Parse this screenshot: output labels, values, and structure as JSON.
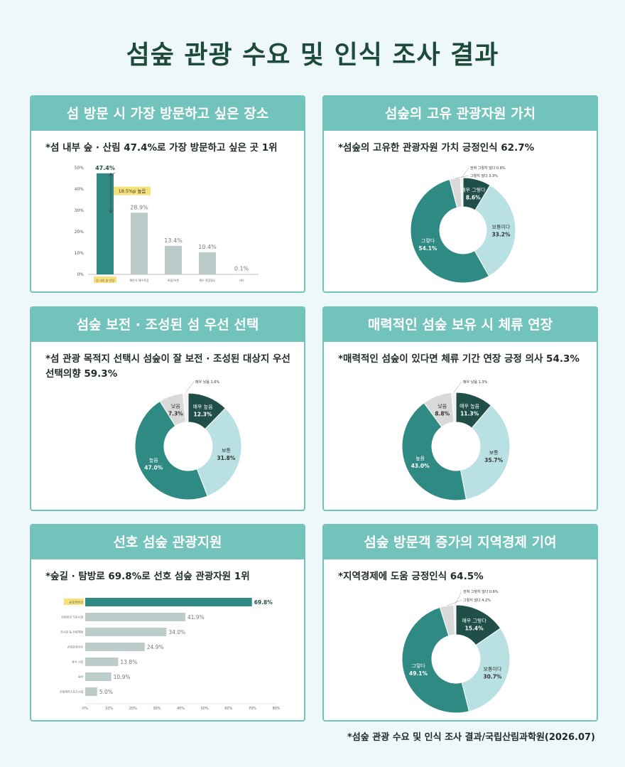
{
  "title": "섬숲 관광 수요 및 인식 조사 결과",
  "source": "*섬숲 관광 수요 및 인식 조사 결과/국립산림과학원(2026.07)",
  "colors": {
    "dark": "#1f4f48",
    "teal": "#2f8a84",
    "light": "#b9e0e3",
    "grey": "#d9d9d9",
    "pale": "#f1f1f1",
    "barGrey": "#bccccb",
    "highlight": "#f6e27a"
  },
  "chart_data": [
    {
      "id": "c1",
      "type": "bar",
      "title": "섬 방문 시 가장 방문하고 싶은 장소",
      "subtitle": "*섬 내부 숲 · 산림 47.4%로 가장 방문하고 싶은 곳 1위",
      "categories": [
        "섬 내부 숲·산림",
        "해안가 해수욕장",
        "마을/어촌",
        "해수 관광명소",
        "기타"
      ],
      "values": [
        47.4,
        28.9,
        13.4,
        10.4,
        0.1
      ],
      "value_labels": [
        "47.4%",
        "28.9%",
        "13.4%",
        "10.4%",
        "0.1%"
      ],
      "yticks": [
        "0%",
        "10%",
        "20%",
        "30%",
        "40%",
        "50%"
      ],
      "ylim": [
        0,
        50
      ],
      "annotation": "18.5%p 높음"
    },
    {
      "id": "c2",
      "type": "pie",
      "title": "섬숲의 고유 관광자원 가치",
      "subtitle": "*섬숲의 고유한 관광자원 가치 긍정인식 62.7%",
      "slices": [
        {
          "label": "매우 그렇다",
          "value": 8.6,
          "value_label": "8.6%"
        },
        {
          "label": "보통이다",
          "value": 33.2,
          "value_label": "33.2%"
        },
        {
          "label": "그렇다",
          "value": 54.1,
          "value_label": "54.1%"
        },
        {
          "label": "그렇지 않다",
          "value": 3.3,
          "value_label": "3.3%"
        },
        {
          "label": "전혀 그렇지 않다",
          "value": 0.8,
          "value_label": "0.8%"
        }
      ]
    },
    {
      "id": "c3",
      "type": "pie",
      "title": "섬숲 보전 · 조성된 섬 우선 선택",
      "subtitle": "*섬 관광 목적지 선택시 섬숲이 잘 보전 · 조성된 대상지 우선 선택의향 59.3%",
      "slices": [
        {
          "label": "매우 높음",
          "value": 12.3,
          "value_label": "12.3%"
        },
        {
          "label": "보통",
          "value": 31.8,
          "value_label": "31.8%"
        },
        {
          "label": "높음",
          "value": 47.0,
          "value_label": "47.0%"
        },
        {
          "label": "낮음",
          "value": 7.3,
          "value_label": "7.3%"
        },
        {
          "label": "매우 낮음",
          "value": 1.6,
          "value_label": "1.6%"
        }
      ]
    },
    {
      "id": "c4",
      "type": "pie",
      "title": "매력적인 섬숲 보유 시 체류 연장",
      "subtitle": "*매력적인 섬숲이 있다면 체류 기간 연장 긍정 의사 54.3%",
      "slices": [
        {
          "label": "매우 높음",
          "value": 11.3,
          "value_label": "11.3%"
        },
        {
          "label": "보통",
          "value": 35.7,
          "value_label": "35.7%"
        },
        {
          "label": "높음",
          "value": 43.0,
          "value_label": "43.0%"
        },
        {
          "label": "낮음",
          "value": 8.8,
          "value_label": "8.8%"
        },
        {
          "label": "매우 낮음",
          "value": 1.3,
          "value_label": "1.3%"
        }
      ]
    },
    {
      "id": "c5",
      "type": "bar",
      "orientation": "horizontal",
      "title": "선호 섬숲 관광지원",
      "subtitle": "*숲길 · 탐방로 69.8%로 선호 섬숲 관광자원 1위",
      "categories": [
        "숲길/탐방로",
        "산림휴양 치유시설",
        "전시관 등 산림체험",
        "산림문화유산",
        "휴식 시설",
        "숙박",
        "산림레저스포츠시설"
      ],
      "values": [
        69.8,
        41.9,
        34.0,
        24.9,
        13.8,
        10.9,
        5.0
      ],
      "value_labels": [
        "69.8%",
        "41.9%",
        "34.0%",
        "24.9%",
        "13.8%",
        "10.9%",
        "5.0%"
      ],
      "xticks": [
        "0%",
        "10%",
        "20%",
        "30%",
        "40%",
        "50%",
        "60%",
        "70%",
        "80%"
      ],
      "xlim": [
        0,
        80
      ]
    },
    {
      "id": "c6",
      "type": "pie",
      "title": "섬숲 방문객 증가의 지역경제 기여",
      "subtitle": "*지역경제에 도움 긍정인식 64.5%",
      "slices": [
        {
          "label": "매우 그렇다",
          "value": 15.4,
          "value_label": "15.4%"
        },
        {
          "label": "보통이다",
          "value": 30.7,
          "value_label": "30.7%"
        },
        {
          "label": "그렇다",
          "value": 49.1,
          "value_label": "49.1%"
        },
        {
          "label": "그렇지 않다",
          "value": 4.2,
          "value_label": "4.2%"
        },
        {
          "label": "전혀 그렇지 않다",
          "value": 0.6,
          "value_label": "0.6%"
        }
      ]
    }
  ]
}
